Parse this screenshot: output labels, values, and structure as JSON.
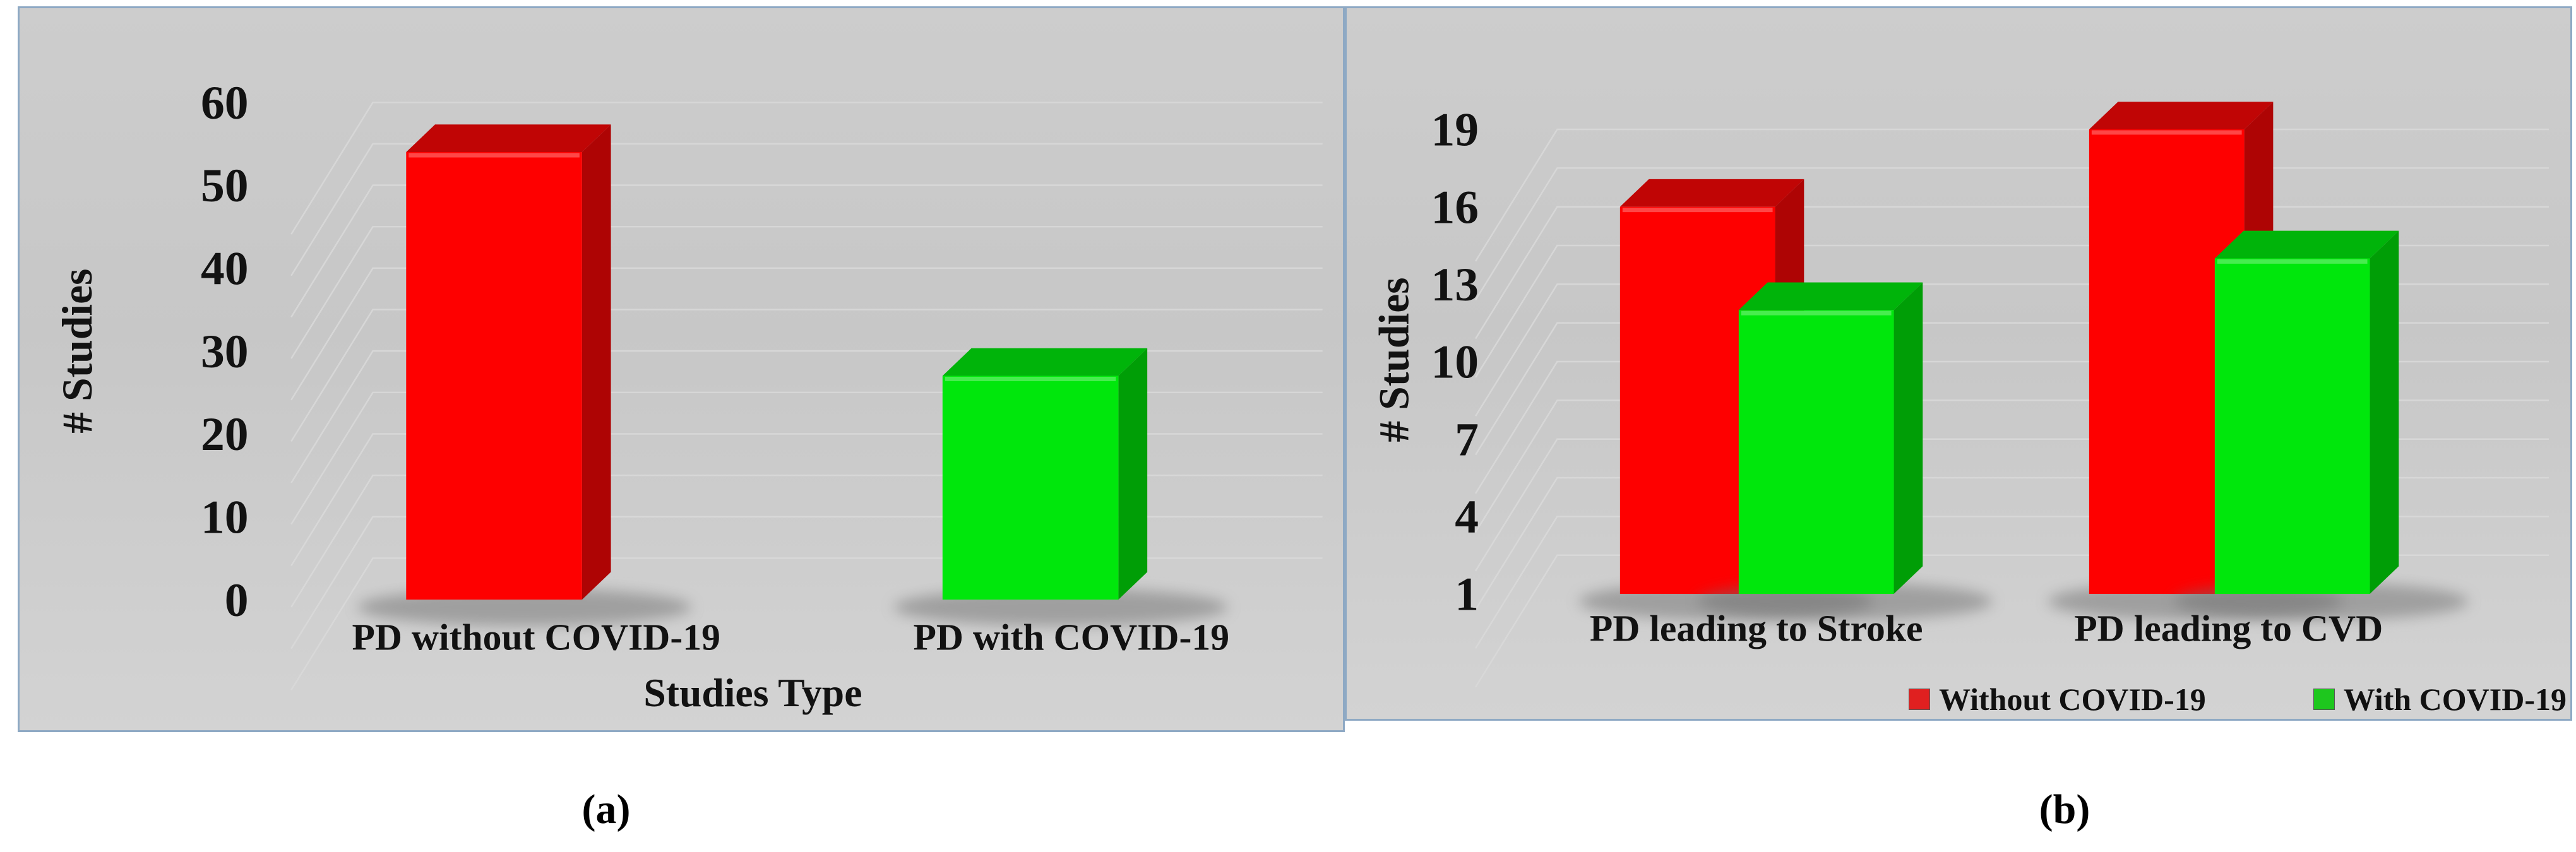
{
  "captions": {
    "a": "(a)",
    "b": "(b)"
  },
  "colors": {
    "panel_border": "#8ea9c4",
    "plot_background": "#c9c9c9",
    "gridline": "#d9d9d9",
    "text": "#121212",
    "bar_red_front": "#fe0000",
    "bar_red_top": "#c00505",
    "bar_red_side": "#ae0404",
    "bar_green_front": "#00e70c",
    "bar_green_top": "#00b40a",
    "bar_green_side": "#009e06",
    "legend_red": "#e02020",
    "legend_green": "#1ec71e"
  },
  "chart_data": [
    {
      "type": "bar",
      "variant": "3d-column",
      "title": "",
      "categories": [
        "PD without COVID-19",
        "PD with COVID-19"
      ],
      "values": [
        54,
        27
      ],
      "bar_colors": [
        "#fe0000",
        "#00e70c"
      ],
      "xlabel": "Studies Type",
      "ylabel": "# Studies",
      "ylim": [
        0,
        60
      ],
      "yticks": [
        0,
        10,
        20,
        30,
        40,
        50,
        60
      ],
      "minor_grid_step": 5,
      "grid": true,
      "legend_position": "none"
    },
    {
      "type": "bar",
      "variant": "3d-column-grouped",
      "title": "",
      "categories": [
        "PD leading to Stroke",
        "PD leading to CVD"
      ],
      "series": [
        {
          "name": "Without COVID-19",
          "color": "#fe0000",
          "values": [
            16,
            19
          ]
        },
        {
          "name": "With COVID-19",
          "color": "#00e70c",
          "values": [
            12,
            14
          ]
        }
      ],
      "xlabel": "",
      "ylabel": "# Studies",
      "ylim": [
        1,
        19
      ],
      "yticks": [
        1,
        4,
        7,
        10,
        13,
        16,
        19
      ],
      "minor_grid_step": 1.5,
      "grid": true,
      "legend_position": "bottom-right"
    }
  ]
}
